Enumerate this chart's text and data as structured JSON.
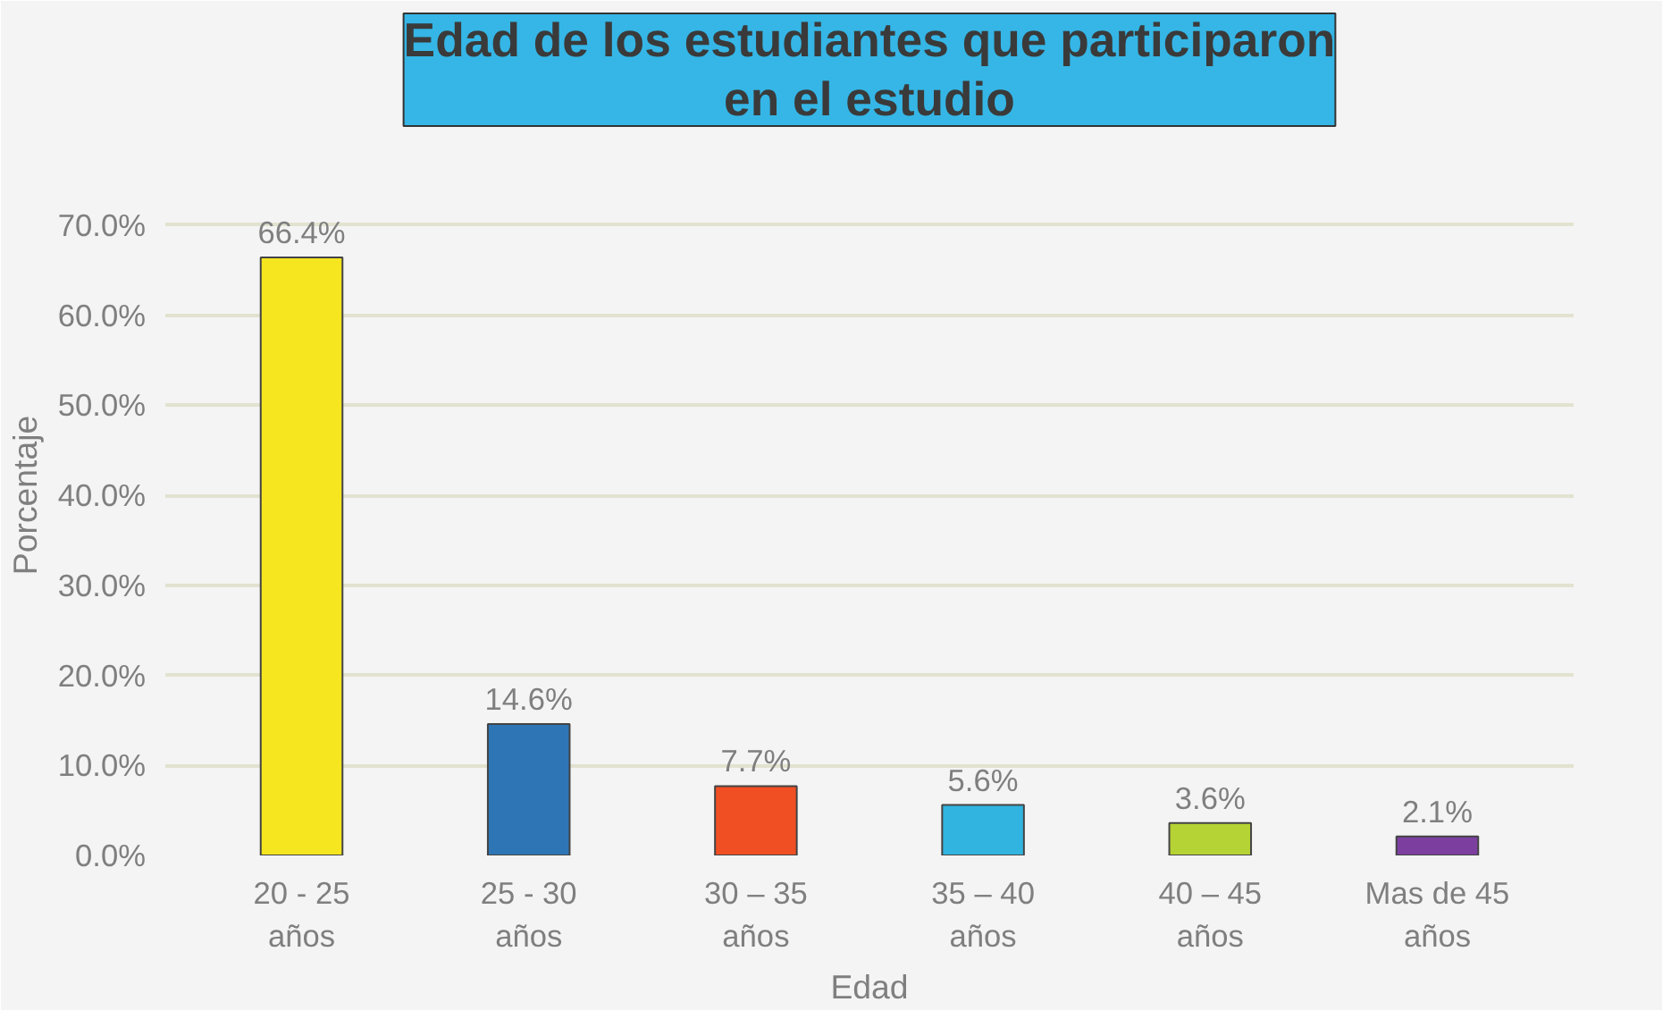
{
  "chart_data": {
    "type": "bar",
    "title": "Edad de los estudiantes que participaron\nen el estudio",
    "xlabel": "Edad",
    "ylabel": "Porcentaje",
    "categories": [
      "20 - 25\naños",
      "25 - 30\naños",
      "30 – 35\naños",
      "35 – 40\naños",
      "40 – 45\naños",
      "Mas de 45\naños"
    ],
    "values": [
      66.4,
      14.6,
      7.7,
      5.6,
      3.6,
      2.1
    ],
    "colors": [
      "#f5e620",
      "#2e75b6",
      "#f04e23",
      "#31b4e0",
      "#b5d334",
      "#7c3fa0"
    ],
    "value_labels": [
      "66.4%",
      "14.6%",
      "7.7%",
      "5.6%",
      "3.6%",
      "2.1%"
    ],
    "ylim": [
      0,
      80
    ],
    "yticks": [
      {
        "value": 0,
        "label": "0.0%"
      },
      {
        "value": 10,
        "label": "10.0%"
      },
      {
        "value": 20,
        "label": "20.0%"
      },
      {
        "value": 30,
        "label": "30.0%"
      },
      {
        "value": 40,
        "label": "40.0%"
      },
      {
        "value": 50,
        "label": "50.0%"
      },
      {
        "value": 60,
        "label": "60.0%"
      },
      {
        "value": 70,
        "label": "70.0%"
      }
    ],
    "grid": "y"
  }
}
